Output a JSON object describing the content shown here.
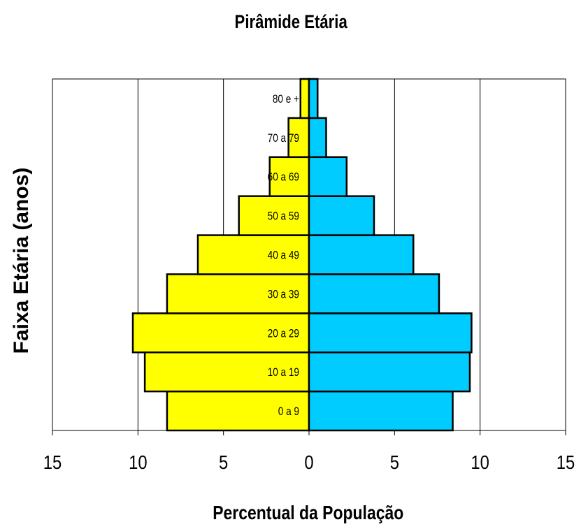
{
  "chart_data": {
    "type": "bar",
    "orientation": "horizontal",
    "subtype": "population-pyramid",
    "title": "Pirâmide Etária",
    "xlabel": "Percentual da População",
    "ylabel": "Faixa Etária (anos)",
    "categories": [
      "0 a 9",
      "10 a 19",
      "20 a 29",
      "30 a 39",
      "40 a 49",
      "50 a 59",
      "60 a 69",
      "70 a 79",
      "80 e +"
    ],
    "series": [
      {
        "values": [
          8.3,
          9.6,
          10.3,
          8.3,
          6.5,
          4.1,
          2.3,
          1.2,
          0.5
        ],
        "side": "left",
        "color": "#ffff00"
      },
      {
        "values": [
          8.4,
          9.4,
          9.5,
          7.6,
          6.1,
          3.8,
          2.2,
          1.0,
          0.5
        ],
        "side": "right",
        "color": "#00ccff"
      }
    ],
    "xlim": [
      -15,
      15
    ],
    "xtick_values": [
      -15,
      -10,
      -5,
      0,
      5,
      10,
      15
    ],
    "xtick_labels": [
      "15",
      "10",
      "5",
      "0",
      "5",
      "10",
      "15"
    ],
    "grid": "vertical",
    "legend": "none"
  }
}
